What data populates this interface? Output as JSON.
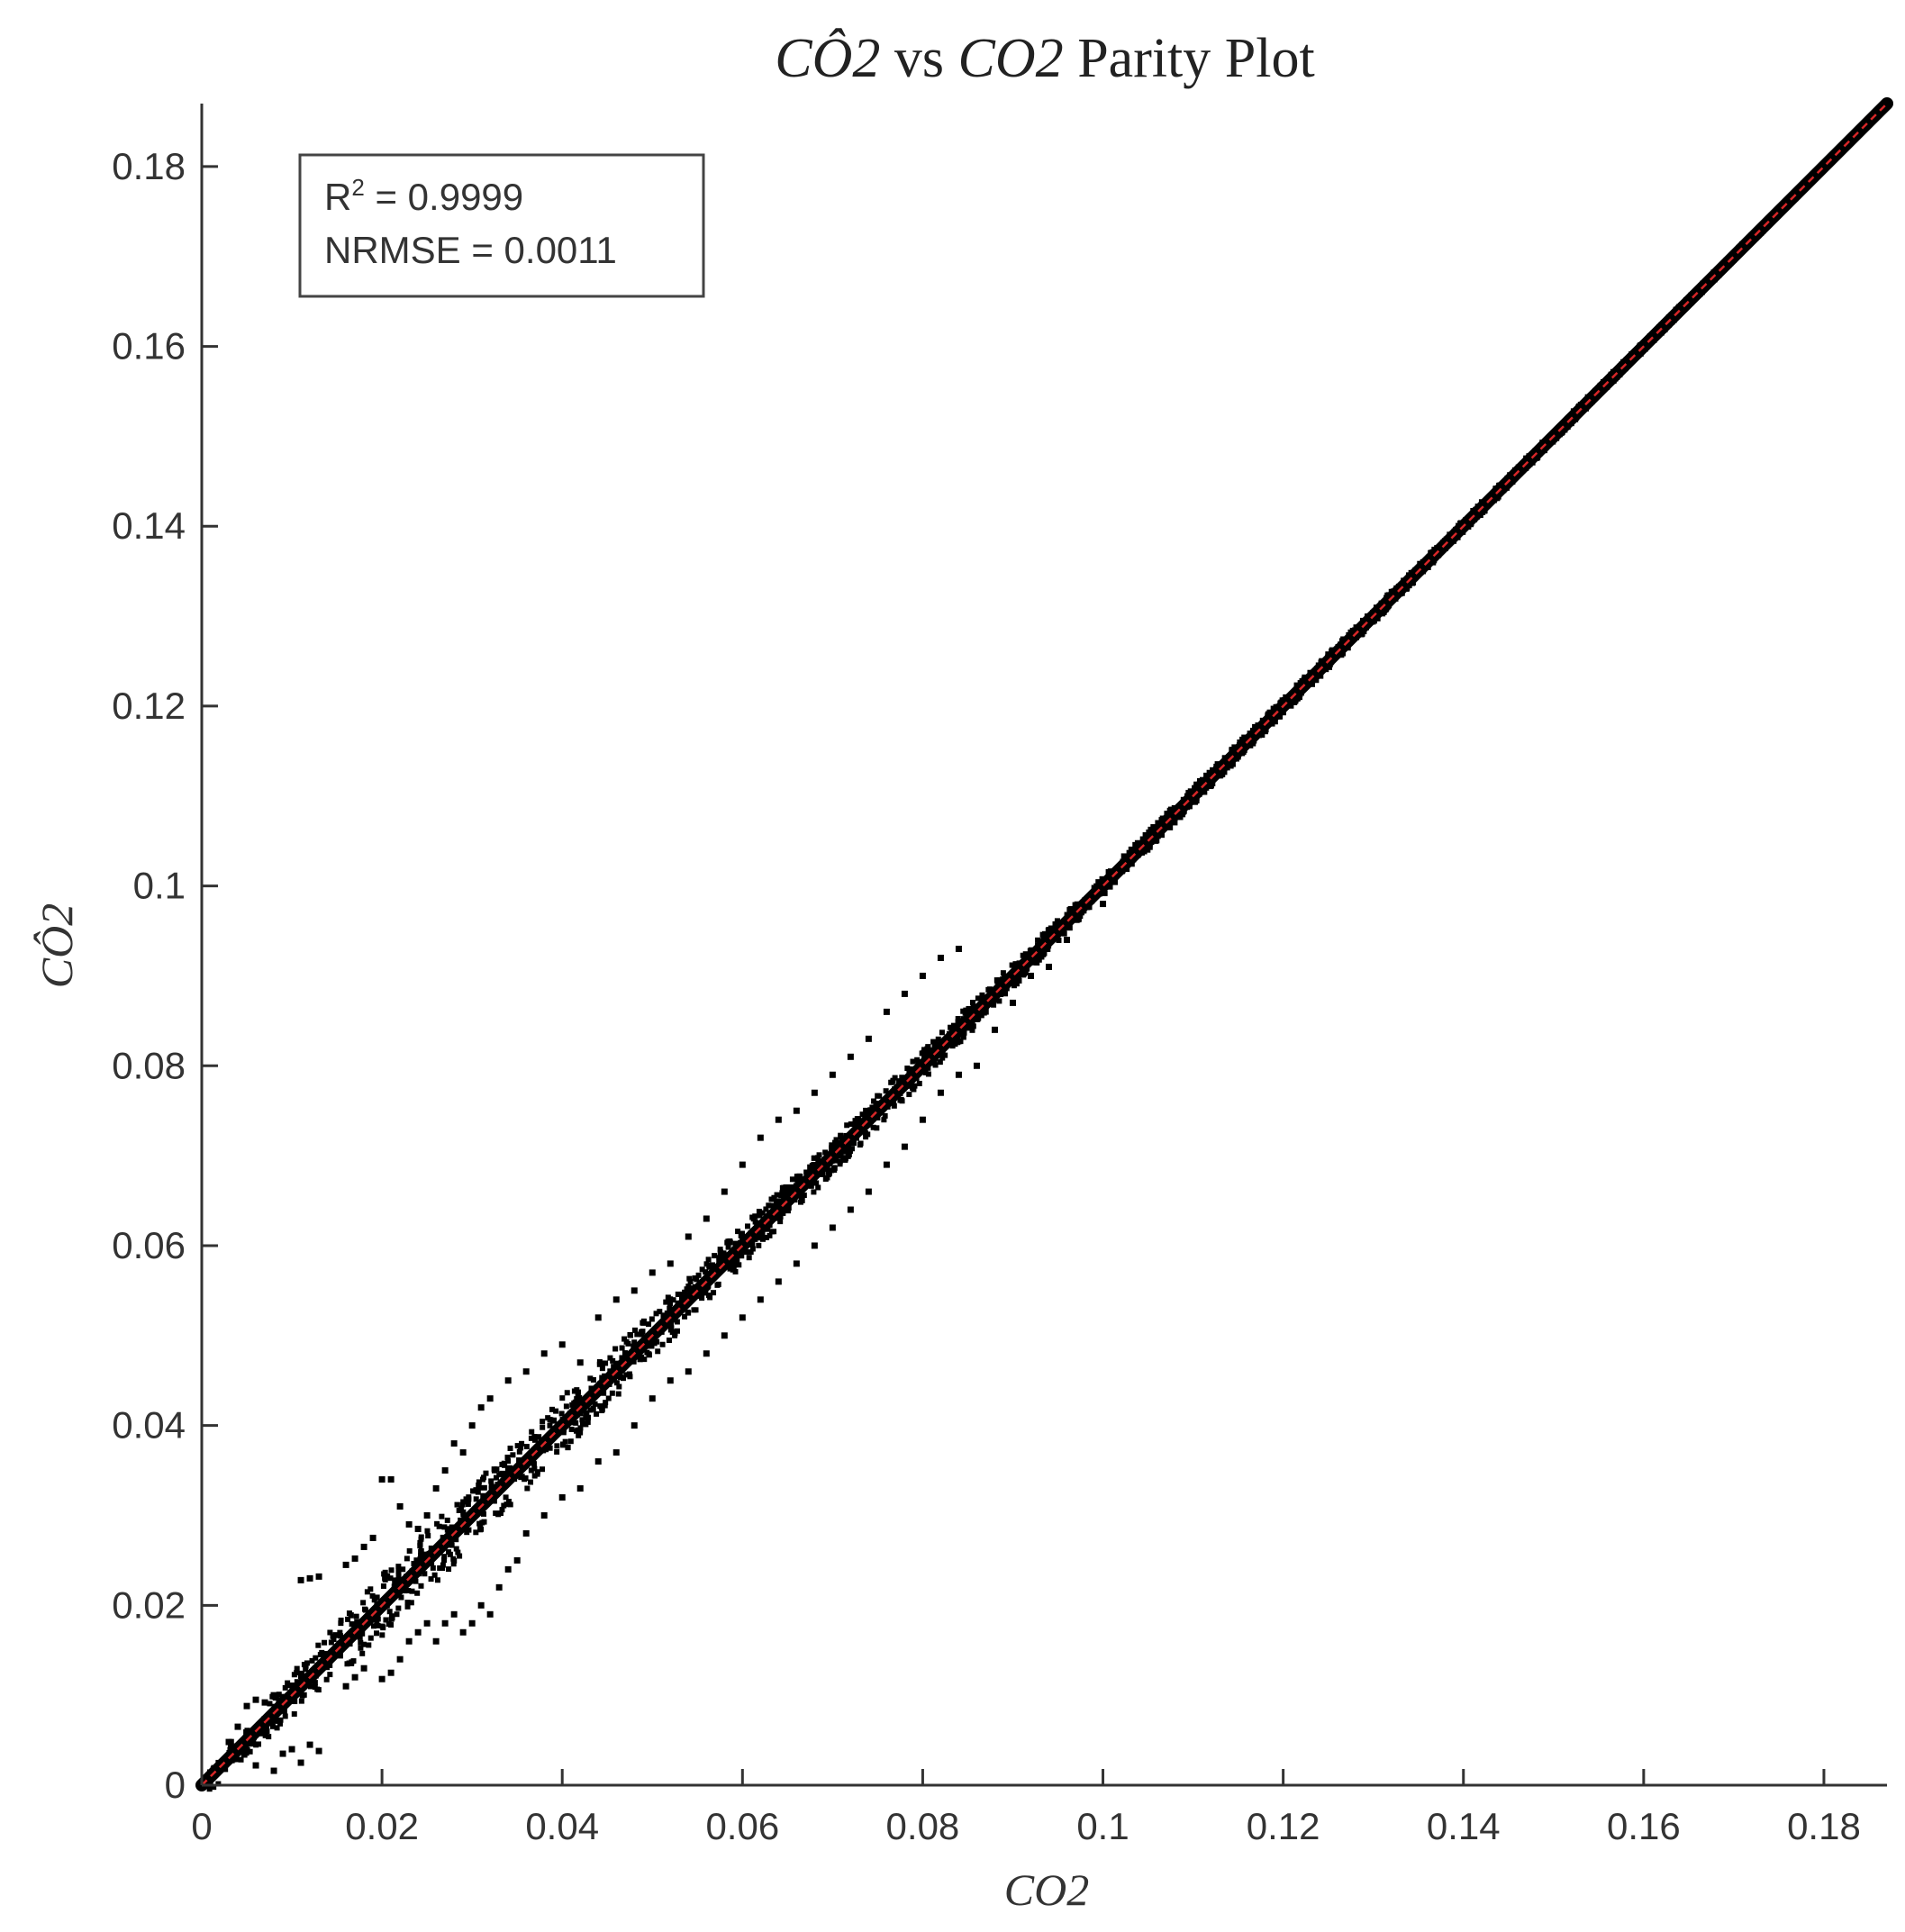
{
  "chart_data": {
    "type": "scatter",
    "title": {
      "part1": "CÔ2",
      "part2": " vs ",
      "part3": "CO2",
      "part4": " Parity Plot"
    },
    "xlabel": "CO2",
    "ylabel": "CÔ2",
    "xlim": [
      0,
      0.187
    ],
    "ylim": [
      0,
      0.187
    ],
    "x_ticks": [
      0,
      0.02,
      0.04,
      0.06,
      0.08,
      0.1,
      0.12,
      0.14,
      0.16,
      0.18
    ],
    "x_tick_labels": [
      "0",
      "0.02",
      "0.04",
      "0.06",
      "0.08",
      "0.1",
      "0.12",
      "0.14",
      "0.16",
      "0.18"
    ],
    "y_ticks": [
      0,
      0.02,
      0.04,
      0.06,
      0.08,
      0.1,
      0.12,
      0.14,
      0.16,
      0.18
    ],
    "y_tick_labels": [
      "0",
      "0.02",
      "0.04",
      "0.06",
      "0.08",
      "0.1",
      "0.12",
      "0.14",
      "0.16",
      "0.18"
    ],
    "grid": false,
    "stats": {
      "r2_prefix": "R",
      "r2_sup": "2",
      "r2_value": " = 0.9999",
      "nrmse": "NRMSE = 0.0011"
    },
    "reference_line": {
      "slope": 1,
      "intercept": 0,
      "color": "#d62728",
      "style": "dashed"
    },
    "series": [
      {
        "marker_color": "#000000",
        "band_centerline": {
          "x": [
            0,
            0.187
          ],
          "y": [
            0,
            0.187
          ]
        },
        "scatter_envelope": [
          {
            "x": 0.005,
            "spread": 0.005
          },
          {
            "x": 0.02,
            "spread": 0.01
          },
          {
            "x": 0.04,
            "spread": 0.009
          },
          {
            "x": 0.06,
            "spread": 0.006
          },
          {
            "x": 0.08,
            "spread": 0.005
          },
          {
            "x": 0.1,
            "spread": 0.003
          },
          {
            "x": 0.14,
            "spread": 0.002
          },
          {
            "x": 0.185,
            "spread": 0.001
          }
        ],
        "points": [
          [
            0.003,
            0.0048
          ],
          [
            0.004,
            0.0065
          ],
          [
            0.005,
            0.0088
          ],
          [
            0.006,
            0.0095
          ],
          [
            0.007,
            0.0092
          ],
          [
            0.008,
            0.01
          ],
          [
            0.009,
            0.0098
          ],
          [
            0.008,
            0.0016
          ],
          [
            0.006,
            0.0022
          ],
          [
            0.009,
            0.0035
          ],
          [
            0.01,
            0.004
          ],
          [
            0.011,
            0.0025
          ],
          [
            0.012,
            0.0045
          ],
          [
            0.013,
            0.0038
          ],
          [
            0.011,
            0.0228
          ],
          [
            0.012,
            0.023
          ],
          [
            0.013,
            0.0232
          ],
          [
            0.016,
            0.0245
          ],
          [
            0.017,
            0.0252
          ],
          [
            0.018,
            0.0265
          ],
          [
            0.019,
            0.0275
          ],
          [
            0.02,
            0.034
          ],
          [
            0.021,
            0.034
          ],
          [
            0.022,
            0.031
          ],
          [
            0.023,
            0.029
          ],
          [
            0.024,
            0.0285
          ],
          [
            0.025,
            0.03
          ],
          [
            0.026,
            0.033
          ],
          [
            0.027,
            0.035
          ],
          [
            0.028,
            0.038
          ],
          [
            0.029,
            0.037
          ],
          [
            0.03,
            0.04
          ],
          [
            0.031,
            0.042
          ],
          [
            0.032,
            0.043
          ],
          [
            0.034,
            0.045
          ],
          [
            0.036,
            0.046
          ],
          [
            0.038,
            0.048
          ],
          [
            0.04,
            0.049
          ],
          [
            0.042,
            0.047
          ],
          [
            0.044,
            0.052
          ],
          [
            0.046,
            0.054
          ],
          [
            0.048,
            0.055
          ],
          [
            0.05,
            0.057
          ],
          [
            0.052,
            0.058
          ],
          [
            0.054,
            0.061
          ],
          [
            0.056,
            0.063
          ],
          [
            0.058,
            0.066
          ],
          [
            0.06,
            0.069
          ],
          [
            0.062,
            0.072
          ],
          [
            0.064,
            0.074
          ],
          [
            0.066,
            0.075
          ],
          [
            0.068,
            0.077
          ],
          [
            0.07,
            0.079
          ],
          [
            0.072,
            0.081
          ],
          [
            0.074,
            0.083
          ],
          [
            0.076,
            0.086
          ],
          [
            0.078,
            0.088
          ],
          [
            0.08,
            0.09
          ],
          [
            0.082,
            0.092
          ],
          [
            0.084,
            0.093
          ],
          [
            0.016,
            0.011
          ],
          [
            0.017,
            0.012
          ],
          [
            0.018,
            0.013
          ],
          [
            0.02,
            0.0118
          ],
          [
            0.021,
            0.0125
          ],
          [
            0.022,
            0.014
          ],
          [
            0.023,
            0.016
          ],
          [
            0.024,
            0.017
          ],
          [
            0.025,
            0.018
          ],
          [
            0.026,
            0.016
          ],
          [
            0.027,
            0.018
          ],
          [
            0.028,
            0.019
          ],
          [
            0.029,
            0.017
          ],
          [
            0.03,
            0.018
          ],
          [
            0.031,
            0.02
          ],
          [
            0.032,
            0.019
          ],
          [
            0.033,
            0.022
          ],
          [
            0.034,
            0.024
          ],
          [
            0.035,
            0.025
          ],
          [
            0.036,
            0.028
          ],
          [
            0.038,
            0.03
          ],
          [
            0.04,
            0.032
          ],
          [
            0.042,
            0.033
          ],
          [
            0.044,
            0.036
          ],
          [
            0.046,
            0.037
          ],
          [
            0.048,
            0.04
          ],
          [
            0.05,
            0.043
          ],
          [
            0.052,
            0.045
          ],
          [
            0.054,
            0.046
          ],
          [
            0.056,
            0.048
          ],
          [
            0.058,
            0.05
          ],
          [
            0.06,
            0.052
          ],
          [
            0.062,
            0.054
          ],
          [
            0.064,
            0.056
          ],
          [
            0.066,
            0.058
          ],
          [
            0.068,
            0.06
          ],
          [
            0.07,
            0.062
          ],
          [
            0.072,
            0.064
          ],
          [
            0.074,
            0.066
          ],
          [
            0.076,
            0.069
          ],
          [
            0.078,
            0.071
          ],
          [
            0.08,
            0.074
          ],
          [
            0.082,
            0.077
          ],
          [
            0.084,
            0.079
          ],
          [
            0.086,
            0.08
          ],
          [
            0.088,
            0.084
          ],
          [
            0.09,
            0.087
          ],
          [
            0.092,
            0.09
          ],
          [
            0.094,
            0.091
          ],
          [
            0.096,
            0.094
          ],
          [
            0.1,
            0.098
          ]
        ]
      }
    ]
  }
}
